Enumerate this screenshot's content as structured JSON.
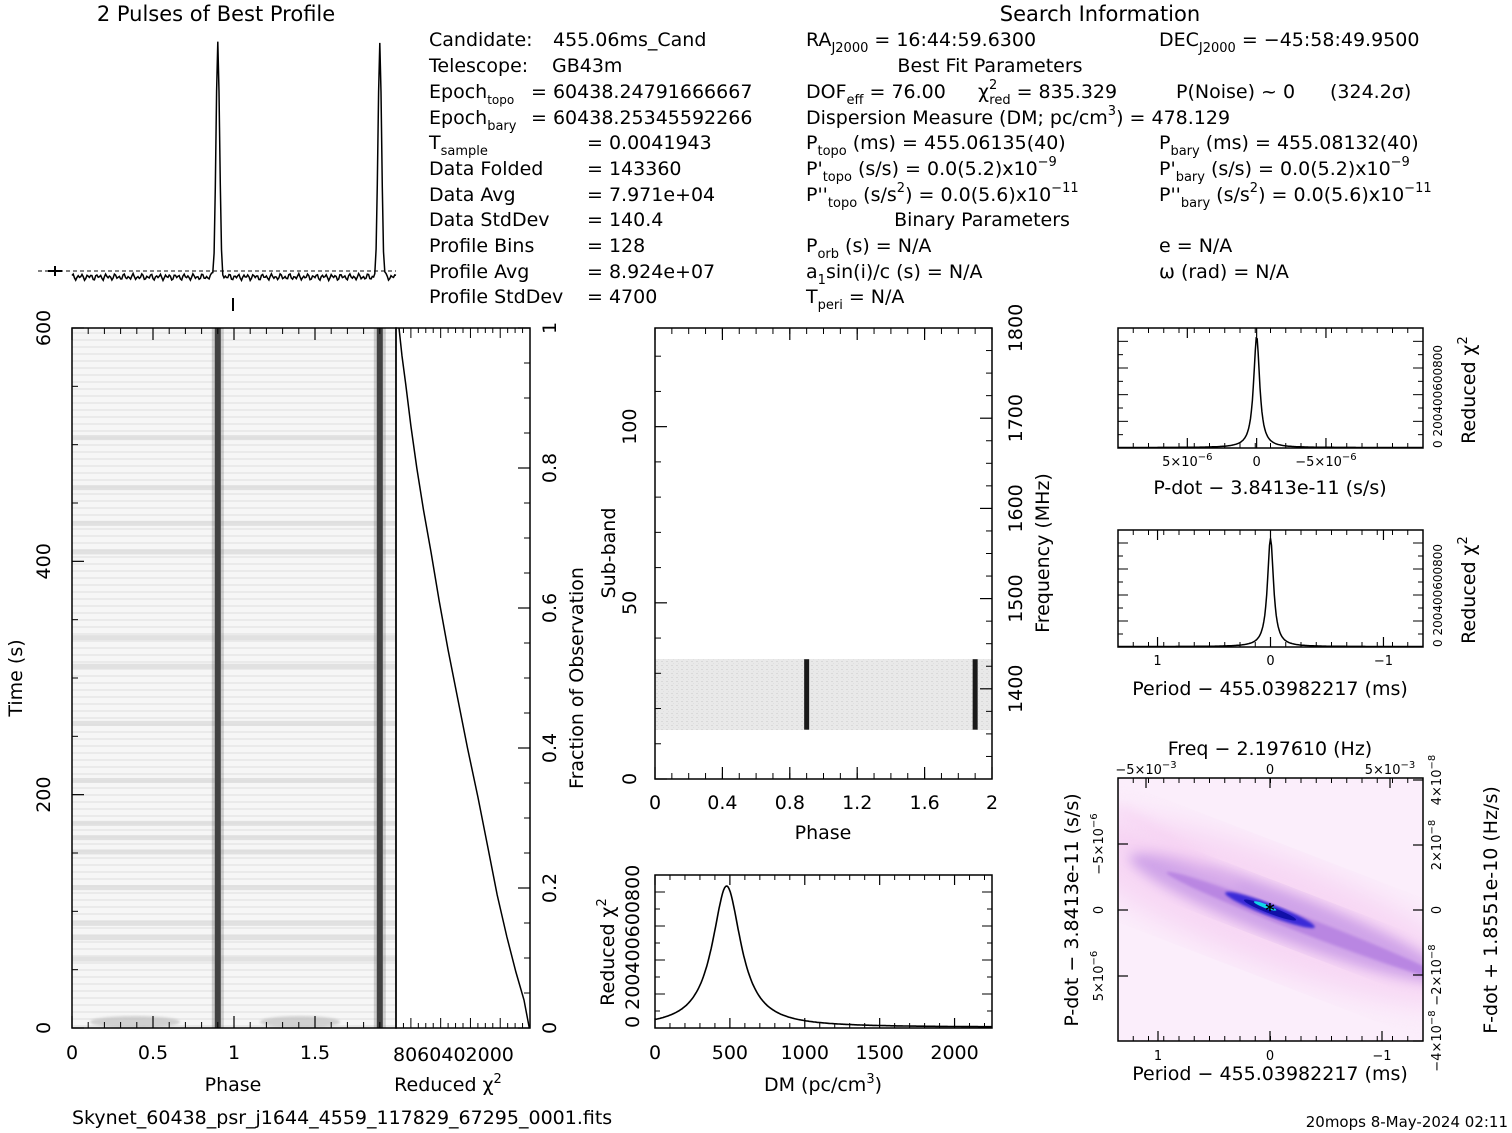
{
  "chart_data": [
    {
      "id": "profile",
      "type": "line",
      "title": "2 Pulses of Best Profile",
      "xlim": [
        0,
        2
      ],
      "pulse_phases": [
        0.9,
        1.9
      ]
    },
    {
      "id": "phase_time",
      "type": "heatmap",
      "xlabel": "Phase",
      "ylabel": "Time (s)",
      "x_ticks": [
        "0",
        "0.5",
        "1",
        "1.5"
      ],
      "x_tick_values": [
        0,
        0.5,
        1,
        1.5
      ],
      "y_ticks": [
        "0",
        "200",
        "400",
        "600"
      ],
      "y_tick_values": [
        0,
        200,
        400,
        600
      ],
      "xlim": [
        0,
        2
      ],
      "ylim": [
        0,
        600
      ],
      "pulse_phases": [
        0.9,
        1.9
      ]
    },
    {
      "id": "time_chi2",
      "type": "line",
      "xlabel": "Reduced",
      "xlabel_sym": "χ",
      "xlabel_sup": "2",
      "ylabel": "Fraction of Observation",
      "x_ticks_text": "8060402000",
      "x_tick_values": [
        800,
        600,
        400,
        200,
        0
      ],
      "y_ticks": [
        "0",
        "0.2",
        "0.4",
        "0.6",
        "0.8",
        "1"
      ],
      "y_tick_values": [
        0,
        0.2,
        0.4,
        0.6,
        0.8,
        1
      ],
      "xlim": [
        900,
        0
      ],
      "ylim": [
        0,
        1
      ],
      "x": [
        880,
        860,
        835,
        800,
        760,
        715,
        665,
        610,
        550,
        485,
        420,
        350,
        285,
        220,
        155,
        95,
        40,
        5
      ],
      "y": [
        1.0,
        0.96,
        0.92,
        0.86,
        0.8,
        0.74,
        0.68,
        0.61,
        0.54,
        0.47,
        0.4,
        0.33,
        0.26,
        0.19,
        0.13,
        0.08,
        0.04,
        0.0
      ]
    },
    {
      "id": "subband",
      "type": "heatmap",
      "xlabel": "Phase",
      "ylabel": "Sub-band",
      "ylabel_right": "Frequency (MHz)",
      "x_ticks": [
        "0",
        "0.4",
        "0.8",
        "1.2",
        "1.6",
        "2"
      ],
      "x_tick_values": [
        0,
        0.4,
        0.8,
        1.2,
        1.6,
        2
      ],
      "y_ticks": [
        "0",
        "50",
        "100"
      ],
      "y_tick_values": [
        0,
        50,
        100
      ],
      "right_ticks": [
        "1400",
        "1500",
        "1600",
        "1700",
        "1800"
      ],
      "right_tick_values": [
        1400,
        1500,
        1600,
        1700,
        1800
      ],
      "xlim": [
        0,
        2
      ],
      "ylim": [
        0,
        128
      ],
      "right_lim": [
        1300,
        1800
      ],
      "active_subbands": [
        14,
        34
      ],
      "pulse_phases": [
        0.9,
        1.9
      ]
    },
    {
      "id": "dm_curve",
      "type": "line",
      "xlabel": "DM (pc/cm",
      "xlabel_sup": "3",
      "xlabel_end": ")",
      "ylabel": "Reduced",
      "ylabel_sym": "χ",
      "ylabel_sup": "2",
      "x_ticks": [
        "0",
        "500",
        "1000",
        "1500",
        "2000"
      ],
      "x_tick_values": [
        0,
        500,
        1000,
        1500,
        2000
      ],
      "y_ticks_text": "0 200400600800",
      "xlim": [
        0,
        2250
      ],
      "ylim": [
        0,
        900
      ],
      "peak_dm": 478.129,
      "peak_chi2": 835.329
    },
    {
      "id": "pdot_curve",
      "type": "line",
      "xlabel": "P-dot − 3.8413e-11 (s/s)",
      "ylabel": "Reduced",
      "ylabel_sym": "χ",
      "ylabel_sup": "2",
      "x_ticks": [
        {
          "mant": "5×10",
          "exp": "−6",
          "value": 5e-06
        },
        {
          "mant": "0",
          "exp": "",
          "value": 0
        },
        {
          "mant": "−5×10",
          "exp": "−6",
          "value": -5e-06
        }
      ],
      "y_ticks_text": "0 200400600800",
      "xlim": [
        1e-05,
        -1.2e-05
      ],
      "ylim": [
        0,
        900
      ],
      "peak_chi2": 835.329
    },
    {
      "id": "period_curve",
      "type": "line",
      "xlabel": "Period − 455.03982217 (ms)",
      "ylabel": "Reduced",
      "ylabel_sym": "χ",
      "ylabel_sup": "2",
      "x_ticks": [
        "1",
        "0",
        "−1"
      ],
      "x_tick_values": [
        1,
        0,
        -1
      ],
      "y_ticks_text": "0 200400600800",
      "xlim": [
        1.35,
        -1.35
      ],
      "ylim": [
        0,
        900
      ],
      "peak_chi2": 835.329
    },
    {
      "id": "p_pdot_map",
      "type": "heatmap",
      "title": "Freq − 2.197610 (Hz)",
      "xlabel": "Period − 455.03982217 (ms)",
      "ylabel": "P-dot − 3.8413e-11 (s/s)",
      "ylabel_right": "F-dot + 1.8551e-10 (Hz/s)",
      "x_ticks": [
        "1",
        "0",
        "−1"
      ],
      "top_ticks": [
        {
          "mant": "−5×10",
          "exp": "−3"
        },
        {
          "mant": "0",
          "exp": ""
        },
        {
          "mant": "5×10",
          "exp": "−3"
        }
      ],
      "y_ticks": [
        {
          "mant": "5×10",
          "exp": "−6"
        },
        {
          "mant": "0",
          "exp": ""
        },
        {
          "mant": "−5×10",
          "exp": "−6"
        }
      ],
      "right_ticks": [
        {
          "mant": "−4×10",
          "exp": "−8"
        },
        {
          "mant": "−2×10",
          "exp": "−8"
        },
        {
          "mant": "0",
          "exp": ""
        },
        {
          "mant": "2×10",
          "exp": "−8"
        },
        {
          "mant": "4×10",
          "exp": "−8"
        }
      ],
      "colors": [
        "#fbeefb",
        "#f4c8f0",
        "#b07ae0",
        "#3a2cd8",
        "#1010a8",
        "#10d8e8"
      ]
    }
  ],
  "header": {
    "search_information": "Search Information"
  },
  "info": {
    "candidate_label": "Candidate:",
    "candidate": "455.06ms_Cand",
    "telescope_label": "Telescope:",
    "telescope": "GB43m",
    "epoch_topo_label": "Epoch",
    "epoch_topo_sub": "topo",
    "epoch_topo": "= 60438.24791666667",
    "epoch_bary_label": "Epoch",
    "epoch_bary_sub": "bary",
    "epoch_bary": "= 60438.25345592266",
    "tsample_label": "T",
    "tsample_sub": "sample",
    "tsample": "=   0.0041943",
    "data_folded_label": "Data Folded",
    "data_folded": "=   143360",
    "data_avg_label": "Data Avg",
    "data_avg": "=   7.971e+04",
    "data_stddev_label": "Data StdDev",
    "data_stddev": "=   140.4",
    "profile_bins_label": "Profile Bins",
    "profile_bins": "=   128",
    "profile_avg_label": "Profile Avg",
    "profile_avg": "=   8.924e+07",
    "profile_stddev_label": "Profile StdDev",
    "profile_stddev": "=   4700"
  },
  "search": {
    "ra_label": "RA",
    "ra_sub": "J2000",
    "ra": "= 16:44:59.6300",
    "dec_label": "DEC",
    "dec_sub": "J2000",
    "dec": "= −45:58:49.9500",
    "best_fit": "Best Fit Parameters",
    "dof_label": "DOF",
    "dof_sub": "eff",
    "dof": "= 76.00",
    "chi2_sym": "χ",
    "chi2_sup": "2",
    "chi2_sub": "red",
    "chi2": "= 835.329",
    "pnoise": "P(Noise) ~ 0",
    "sigma": "(324.2σ)",
    "dm_text": "Dispersion Measure (DM; pc/cm",
    "dm_sup": "3",
    "dm_val": ") = 478.129",
    "ptopo_label": "P",
    "ptopo_sub": "topo",
    "ptopo": "(ms) =  455.06135(40)",
    "pbary_label": "P",
    "pbary_sub": "bary",
    "pbary": "(ms) =  455.08132(40)",
    "pd_topo_label": "P'",
    "pd_topo_sub": "topo",
    "pd_topo": "(s/s) = 0.0(5.2)x10",
    "pd_topo_exp": "−9",
    "pd_bary_label": "P'",
    "pd_bary_sub": "bary",
    "pd_bary": "(s/s) = 0.0(5.2)x10",
    "pd_bary_exp": "−9",
    "pdd_topo_label": "P''",
    "pdd_topo_sub": "topo",
    "pdd_topo_a": "(s/s",
    "pdd_topo_sup": "2",
    "pdd_topo_b": ") = 0.0(5.6)x10",
    "pdd_topo_exp": "−11",
    "pdd_bary_label": "P''",
    "pdd_bary_sub": "bary",
    "pdd_bary_a": "(s/s",
    "pdd_bary_sup": "2",
    "pdd_bary_b": ") = 0.0(5.6)x10",
    "pdd_bary_exp": "−11",
    "binary": "Binary Parameters",
    "porb_label": "P",
    "porb_sub": "orb",
    "porb": "(s) = N/A",
    "e": "e = N/A",
    "a1_a": "a",
    "a1_sub": "1",
    "a1_b": "sin(i)/c (s) = N/A",
    "omega": "ω (rad) = N/A",
    "tperi_label": "T",
    "tperi_sub": "peri",
    "tperi": "= N/A"
  },
  "footer": {
    "filename": "Skynet_60438_psr_j1644_4559_117829_67295_0001.fits",
    "stamp": "20mops   8-May-2024 02:11"
  }
}
